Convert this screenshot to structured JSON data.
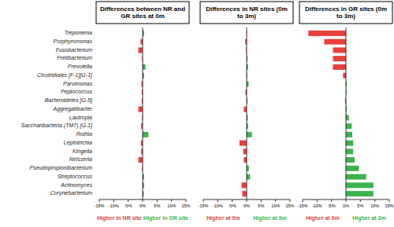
{
  "chart_data": [
    {
      "type": "bar",
      "orientation": "horizontal",
      "grid": false,
      "title": "Differences between NR and GR sites at 0m",
      "categories": [
        "Treponema",
        "Porphyromonas",
        "Fusobacterium",
        "Fretibacterium",
        "Prevotella",
        "Clostridiales [F-1][G-1]",
        "Parvimonas",
        "Peptococcus",
        "Bacteroidetes [G-5]",
        "Aggregatibacter",
        "Lautropia",
        "Saccharibacteria (TM7) [G-1]",
        "Rothia",
        "Leptotrichia",
        "Kingella",
        "Neisseria",
        "Pseudopropionibacterium",
        "Streptococcus",
        "Actinomyces",
        "Corynebacterium"
      ],
      "values": [
        0.5,
        -0.7,
        -1.5,
        -0.2,
        1.0,
        0.5,
        -0.4,
        -0.3,
        -0.3,
        -1.5,
        -0.2,
        -0.5,
        2.0,
        -0.6,
        -0.5,
        -1.5,
        -0.2,
        0.5,
        0.5,
        0.4
      ],
      "colors": [
        "#3cb34a",
        "#e8403a",
        "#e8403a",
        "#e8403a",
        "#3cb34a",
        "#3cb34a",
        "#e8403a",
        "#e8403a",
        "#e8403a",
        "#e8403a",
        "#e8403a",
        "#e8403a",
        "#3cb34a",
        "#e8403a",
        "#e8403a",
        "#e8403a",
        "#e8403a",
        "#3cb34a",
        "#3cb34a",
        "#3cb34a"
      ],
      "xlim": [
        -15,
        15
      ],
      "xticks": [
        {
          "value": -15,
          "label": "-15%"
        },
        {
          "value": -10,
          "label": "-10%"
        },
        {
          "value": -5,
          "label": "-5%"
        },
        {
          "value": 0,
          "label": "0%"
        },
        {
          "value": 5,
          "label": "5%"
        },
        {
          "value": 10,
          "label": "10%"
        },
        {
          "value": 15,
          "label": "15%"
        }
      ],
      "annotations": [
        {
          "text": "Higher in NR site",
          "color": "#e8403a"
        },
        {
          "text": "Higher in GR site",
          "color": "#3cb34a"
        }
      ]
    },
    {
      "type": "bar",
      "orientation": "horizontal",
      "grid": false,
      "title": "Differences in NR sites (0m to 3m)",
      "values": [
        -0.1,
        -0.5,
        -0.2,
        0.3,
        0.5,
        0.2,
        0.7,
        -0.4,
        0.3,
        -1.0,
        0.4,
        0.5,
        1.8,
        -2.5,
        -1.2,
        -1.0,
        0.8,
        1.2,
        -1.8,
        -1.5
      ],
      "colors": [
        "#e8403a",
        "#e8403a",
        "#e8403a",
        "#3cb34a",
        "#3cb34a",
        "#3cb34a",
        "#3cb34a",
        "#e8403a",
        "#3cb34a",
        "#e8403a",
        "#3cb34a",
        "#3cb34a",
        "#3cb34a",
        "#e8403a",
        "#e8403a",
        "#e8403a",
        "#3cb34a",
        "#3cb34a",
        "#e8403a",
        "#e8403a"
      ],
      "xlim": [
        -15,
        15
      ],
      "xticks": [
        {
          "value": -15,
          "label": "-15%"
        },
        {
          "value": -10,
          "label": "-10%"
        },
        {
          "value": -5,
          "label": "-5%"
        },
        {
          "value": 0,
          "label": "0%"
        },
        {
          "value": 5,
          "label": "5%"
        },
        {
          "value": 10,
          "label": "10%"
        },
        {
          "value": 15,
          "label": "15%"
        }
      ],
      "annotations": [
        {
          "text": "Higher at 0m",
          "color": "#e8403a"
        },
        {
          "text": "Higher at 3m",
          "color": "#3cb34a"
        }
      ]
    },
    {
      "type": "bar",
      "orientation": "horizontal",
      "grid": false,
      "title": "Differences in GR sites (0m to 3m)",
      "values": [
        -13.0,
        -7.5,
        -4.5,
        -4.5,
        -4.5,
        -1.0,
        0.3,
        0.2,
        -0.3,
        0.3,
        1.0,
        2.0,
        2.2,
        2.5,
        2.5,
        3.0,
        4.5,
        7.0,
        9.5,
        9.5
      ],
      "colors": [
        "#e8403a",
        "#e8403a",
        "#e8403a",
        "#e8403a",
        "#e8403a",
        "#e8403a",
        "#3cb34a",
        "#3cb34a",
        "#e8403a",
        "#3cb34a",
        "#3cb34a",
        "#3cb34a",
        "#3cb34a",
        "#3cb34a",
        "#3cb34a",
        "#3cb34a",
        "#3cb34a",
        "#3cb34a",
        "#3cb34a",
        "#3cb34a"
      ],
      "xlim": [
        -15,
        15
      ],
      "xticks": [
        {
          "value": -15,
          "label": "-15%"
        },
        {
          "value": -10,
          "label": "-10%"
        },
        {
          "value": -5,
          "label": "-5%"
        },
        {
          "value": 0,
          "label": "0%"
        },
        {
          "value": 5,
          "label": "5%"
        },
        {
          "value": 10,
          "label": "10%"
        },
        {
          "value": 15,
          "label": "15%"
        }
      ],
      "annotations": [
        {
          "text": "Higher at 0m",
          "color": "#e8403a"
        },
        {
          "text": "Higher at 3m",
          "color": "#3cb34a"
        }
      ]
    }
  ]
}
